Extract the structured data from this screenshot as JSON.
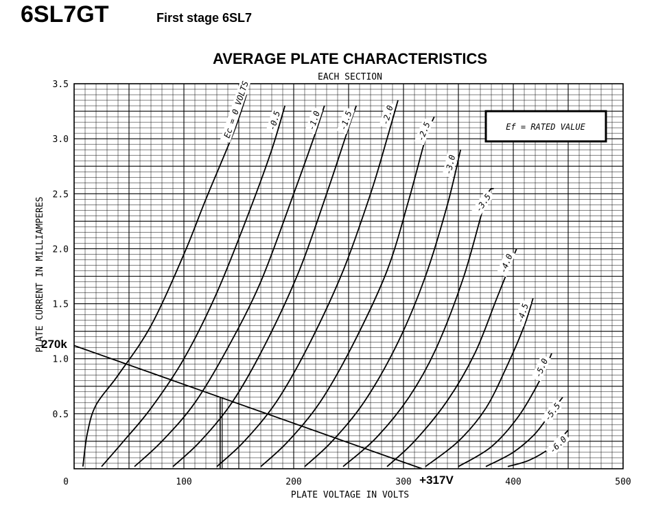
{
  "header": {
    "tube": "6SL7GT",
    "stage": "First stage 6SL7"
  },
  "chart_data": {
    "type": "line",
    "title": "AVERAGE PLATE CHARACTERISTICS",
    "subtitle": "EACH SECTION",
    "xlabel": "PLATE VOLTAGE IN VOLTS",
    "ylabel": "PLATE CURRENT IN MILLIAMPERES",
    "xlim": [
      0,
      500
    ],
    "ylim": [
      0,
      3.5
    ],
    "x_ticks": [
      "0",
      "100",
      "200",
      "300",
      "400",
      "500"
    ],
    "y_ticks": [
      "0.5",
      "1.0",
      "1.5",
      "2.0",
      "2.5",
      "3.0",
      "3.5"
    ],
    "grid": true,
    "annotation_box": "Ef = RATED VALUE",
    "series": [
      {
        "name": "Ec = 0 VOLTS",
        "points": [
          [
            8,
            0.02
          ],
          [
            12,
            0.32
          ],
          [
            20,
            0.58
          ],
          [
            40,
            0.85
          ],
          [
            70,
            1.3
          ],
          [
            100,
            1.95
          ],
          [
            120,
            2.45
          ],
          [
            145,
            3.05
          ],
          [
            157,
            3.4
          ]
        ]
      },
      {
        "name": "-0.5",
        "points": [
          [
            25,
            0.02
          ],
          [
            45,
            0.25
          ],
          [
            70,
            0.55
          ],
          [
            100,
            1.0
          ],
          [
            130,
            1.6
          ],
          [
            160,
            2.35
          ],
          [
            180,
            2.9
          ],
          [
            192,
            3.3
          ]
        ]
      },
      {
        "name": "-1.0",
        "points": [
          [
            55,
            0.02
          ],
          [
            80,
            0.25
          ],
          [
            110,
            0.6
          ],
          [
            140,
            1.1
          ],
          [
            170,
            1.7
          ],
          [
            200,
            2.5
          ],
          [
            218,
            3.0
          ],
          [
            228,
            3.3
          ]
        ]
      },
      {
        "name": "-1.5",
        "points": [
          [
            90,
            0.02
          ],
          [
            115,
            0.25
          ],
          [
            145,
            0.62
          ],
          [
            175,
            1.15
          ],
          [
            205,
            1.8
          ],
          [
            230,
            2.5
          ],
          [
            250,
            3.1
          ],
          [
            257,
            3.3
          ]
        ]
      },
      {
        "name": "-2.0",
        "points": [
          [
            130,
            0.02
          ],
          [
            155,
            0.25
          ],
          [
            185,
            0.62
          ],
          [
            215,
            1.15
          ],
          [
            245,
            1.8
          ],
          [
            270,
            2.5
          ],
          [
            285,
            3.0
          ],
          [
            295,
            3.35
          ]
        ]
      },
      {
        "name": "-2.5",
        "points": [
          [
            170,
            0.02
          ],
          [
            195,
            0.25
          ],
          [
            225,
            0.62
          ],
          [
            255,
            1.15
          ],
          [
            285,
            1.8
          ],
          [
            305,
            2.45
          ],
          [
            320,
            3.0
          ],
          [
            328,
            3.2
          ]
        ]
      },
      {
        "name": "-3.0",
        "points": [
          [
            210,
            0.02
          ],
          [
            235,
            0.25
          ],
          [
            265,
            0.62
          ],
          [
            295,
            1.15
          ],
          [
            320,
            1.75
          ],
          [
            340,
            2.4
          ],
          [
            352,
            2.9
          ]
        ]
      },
      {
        "name": "-3.5",
        "points": [
          [
            245,
            0.02
          ],
          [
            275,
            0.28
          ],
          [
            305,
            0.65
          ],
          [
            330,
            1.1
          ],
          [
            355,
            1.75
          ],
          [
            375,
            2.45
          ],
          [
            382,
            2.55
          ]
        ]
      },
      {
        "name": "-4.0",
        "points": [
          [
            285,
            0.02
          ],
          [
            310,
            0.25
          ],
          [
            340,
            0.62
          ],
          [
            365,
            1.05
          ],
          [
            385,
            1.55
          ],
          [
            403,
            2.0
          ]
        ]
      },
      {
        "name": "-4.5",
        "points": [
          [
            320,
            0.02
          ],
          [
            350,
            0.25
          ],
          [
            375,
            0.55
          ],
          [
            395,
            0.95
          ],
          [
            410,
            1.3
          ],
          [
            418,
            1.55
          ]
        ]
      },
      {
        "name": "-5.0",
        "points": [
          [
            350,
            0.02
          ],
          [
            380,
            0.2
          ],
          [
            405,
            0.48
          ],
          [
            425,
            0.82
          ],
          [
            435,
            1.05
          ]
        ]
      },
      {
        "name": "-5.5",
        "points": [
          [
            375,
            0.02
          ],
          [
            400,
            0.15
          ],
          [
            420,
            0.32
          ],
          [
            435,
            0.52
          ],
          [
            445,
            0.65
          ]
        ]
      },
      {
        "name": "-6.0",
        "points": [
          [
            395,
            0.02
          ],
          [
            415,
            0.08
          ],
          [
            435,
            0.2
          ],
          [
            450,
            0.35
          ]
        ]
      }
    ],
    "load_line": {
      "label_resistance": "270k",
      "label_supply": "+317V",
      "points": [
        [
          0,
          1.12
        ],
        [
          317,
          0
        ]
      ],
      "operating_point_x": 133
    }
  }
}
